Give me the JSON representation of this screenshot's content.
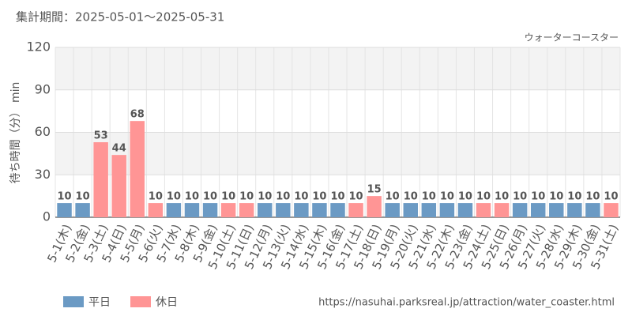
{
  "chart_data": {
    "type": "bar",
    "title": "集計期間：2025-05-01～2025-05-31",
    "subtitle": "ウォーターコースター",
    "y_label": "待ち時間（分） min",
    "source": "https://nasuhai.parksreal.jp/attraction/water_coaster.html",
    "categories": [
      "5-1(木)",
      "5-2(金)",
      "5-3(土)",
      "5-4(日)",
      "5-5(月)",
      "5-6(火)",
      "5-7(水)",
      "5-8(木)",
      "5-9(金)",
      "5-10(土)",
      "5-11(日)",
      "5-12(月)",
      "5-13(火)",
      "5-14(水)",
      "5-15(木)",
      "5-16(金)",
      "5-17(土)",
      "5-18(日)",
      "5-19(月)",
      "5-20(火)",
      "5-21(水)",
      "5-22(木)",
      "5-23(金)",
      "5-24(土)",
      "5-25(日)",
      "5-26(月)",
      "5-27(火)",
      "5-28(水)",
      "5-29(木)",
      "5-30(金)",
      "5-31(土)"
    ],
    "series": [
      {
        "name": "平日",
        "color": "#6b9ac4",
        "values": [
          10,
          10,
          null,
          null,
          null,
          null,
          10,
          10,
          10,
          null,
          null,
          10,
          10,
          10,
          10,
          10,
          null,
          null,
          10,
          10,
          10,
          10,
          10,
          null,
          null,
          10,
          10,
          10,
          10,
          10,
          null
        ]
      },
      {
        "name": "休日",
        "color": "#ff9595",
        "values": [
          null,
          null,
          53,
          44,
          68,
          10,
          null,
          null,
          null,
          10,
          10,
          null,
          null,
          null,
          null,
          null,
          10,
          15,
          null,
          null,
          null,
          null,
          null,
          10,
          10,
          null,
          null,
          null,
          null,
          null,
          10
        ]
      }
    ],
    "ylim": [
      0,
      120
    ],
    "yticks": [
      0,
      30,
      60,
      90,
      120
    ],
    "grid": true,
    "legend": "bottom-left"
  }
}
